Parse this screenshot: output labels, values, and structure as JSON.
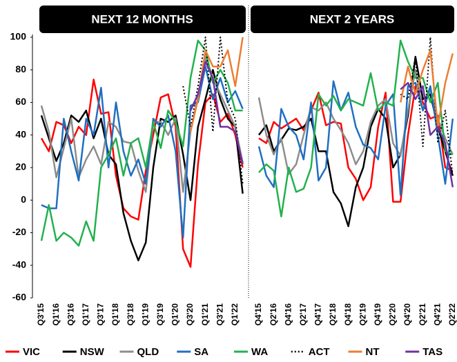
{
  "chart_data": [
    {
      "type": "line",
      "title": "NEXT 12 MONTHS",
      "categories": [
        "Q3'15",
        null,
        "Q1'16",
        null,
        "Q3'16",
        null,
        "Q1'17",
        null,
        "Q3'17",
        null,
        "Q1'18",
        null,
        "Q3'18",
        null,
        "Q1'19",
        null,
        "Q3'19",
        null,
        "Q1'20",
        null,
        "Q3'20",
        null,
        "Q1'21",
        null,
        "Q3'21",
        null,
        "Q1'22",
        null
      ],
      "ylim": [
        -60,
        100
      ],
      "yticks": [
        -60,
        -40,
        -20,
        0,
        20,
        40,
        60,
        80,
        100
      ],
      "legend": "bottom",
      "series": [
        {
          "name": "VIC",
          "color": "#ff0000",
          "values": [
            38,
            30,
            48,
            46,
            35,
            45,
            40,
            74,
            53,
            54,
            15,
            -5,
            -10,
            -12,
            18,
            40,
            63,
            65,
            45,
            -30,
            -41,
            22,
            60,
            65,
            48,
            53,
            40,
            20
          ]
        },
        {
          "name": "NSW",
          "color": "#000000",
          "values": [
            52,
            38,
            24,
            35,
            52,
            48,
            55,
            38,
            50,
            28,
            22,
            -8,
            -25,
            -37,
            -26,
            20,
            50,
            48,
            52,
            28,
            0,
            45,
            62,
            80,
            62,
            50,
            45,
            4
          ]
        },
        {
          "name": "QLD",
          "color": "#8c8c8c",
          "values": [
            58,
            42,
            14,
            32,
            50,
            14,
            25,
            33,
            22,
            48,
            45,
            36,
            35,
            18,
            5,
            48,
            48,
            40,
            50,
            5,
            42,
            63,
            88,
            75,
            65,
            55,
            45,
            23
          ]
        },
        {
          "name": "SA",
          "color": "#1f6fc0",
          "values": [
            -3,
            -5,
            -5,
            50,
            30,
            12,
            50,
            40,
            69,
            20,
            60,
            30,
            15,
            25,
            10,
            50,
            45,
            52,
            30,
            -23,
            58,
            60,
            82,
            62,
            75,
            60,
            67,
            56
          ]
        },
        {
          "name": "WA",
          "color": "#22b14c",
          "values": [
            -25,
            -3,
            -25,
            -20,
            -23,
            -28,
            -13,
            -25,
            20,
            28,
            38,
            15,
            35,
            38,
            20,
            48,
            32,
            55,
            48,
            33,
            75,
            98,
            92,
            72,
            80,
            72,
            55,
            55
          ]
        },
        {
          "name": "ACT",
          "color": "#000000",
          "style": "dotted",
          "values": [
            null,
            null,
            null,
            null,
            null,
            null,
            null,
            null,
            null,
            null,
            null,
            null,
            null,
            null,
            null,
            null,
            null,
            null,
            null,
            70,
            45,
            70,
            100,
            42,
            100,
            60,
            50,
            10
          ]
        },
        {
          "name": "NT",
          "color": "#ed7d31",
          "values": [
            null,
            null,
            null,
            null,
            null,
            null,
            null,
            null,
            null,
            null,
            null,
            null,
            null,
            null,
            null,
            null,
            null,
            null,
            null,
            null,
            42,
            62,
            92,
            82,
            82,
            92,
            70,
            100
          ]
        },
        {
          "name": "TAS",
          "color": "#7030a0",
          "values": [
            null,
            null,
            null,
            null,
            null,
            null,
            null,
            null,
            null,
            null,
            null,
            null,
            null,
            null,
            null,
            null,
            null,
            null,
            null,
            null,
            55,
            65,
            85,
            75,
            45,
            45,
            42,
            22
          ]
        }
      ]
    },
    {
      "type": "line",
      "title": "NEXT 2 YEARS",
      "categories": [
        "Q4'15",
        null,
        "Q2'16",
        null,
        "Q4'16",
        null,
        "Q2'17",
        null,
        "Q4'17",
        null,
        "Q2'18",
        null,
        "Q4'18",
        null,
        "Q2'19",
        null,
        "Q4'19",
        null,
        "Q2'20",
        null,
        "Q4'20",
        null,
        "Q2'21",
        null,
        "Q4'21",
        null,
        "Q2'22"
      ],
      "ylim": [
        -60,
        100
      ],
      "series": [
        {
          "color": "#ff0000",
          "values": [
            38,
            35,
            48,
            44,
            47,
            50,
            43,
            55,
            66,
            46,
            48,
            47,
            20,
            13,
            0,
            8,
            45,
            66,
            -1,
            -1,
            40,
            70,
            60,
            50,
            52,
            20,
            18
          ]
        },
        {
          "color": "#000000",
          "values": [
            40,
            46,
            30,
            37,
            44,
            43,
            45,
            50,
            30,
            30,
            5,
            -2,
            -16,
            8,
            20,
            45,
            56,
            50,
            20,
            28,
            52,
            88,
            62,
            65,
            45,
            30,
            15
          ]
        },
        {
          "color": "#8c8c8c",
          "values": [
            63,
            40,
            28,
            38,
            16,
            22,
            40,
            57,
            55,
            60,
            50,
            43,
            35,
            22,
            30,
            48,
            58,
            62,
            35,
            27,
            55,
            80,
            55,
            68,
            50,
            38,
            28
          ]
        },
        {
          "color": "#1f6fc0",
          "values": [
            33,
            15,
            8,
            56,
            45,
            40,
            25,
            60,
            12,
            20,
            73,
            55,
            66,
            45,
            34,
            32,
            25,
            58,
            65,
            3,
            70,
            72,
            55,
            70,
            40,
            10,
            50
          ]
        },
        {
          "color": "#22b14c",
          "values": [
            17,
            22,
            18,
            -10,
            20,
            5,
            7,
            20,
            65,
            58,
            64,
            55,
            62,
            60,
            58,
            78,
            55,
            60,
            58,
            98,
            85,
            75,
            75,
            60,
            72,
            30,
            28
          ]
        },
        {
          "color": "#000000",
          "style": "dotted",
          "values": [
            null,
            null,
            null,
            null,
            null,
            null,
            null,
            null,
            null,
            null,
            null,
            null,
            null,
            null,
            null,
            null,
            null,
            null,
            null,
            65,
            62,
            88,
            33,
            100,
            35,
            55,
            15
          ]
        },
        {
          "color": "#ed7d31",
          "values": [
            null,
            null,
            null,
            null,
            null,
            null,
            null,
            null,
            null,
            null,
            null,
            null,
            null,
            null,
            null,
            null,
            null,
            null,
            null,
            60,
            82,
            65,
            80,
            92,
            45,
            72,
            90
          ]
        },
        {
          "color": "#7030a0",
          "values": [
            null,
            null,
            null,
            null,
            null,
            null,
            null,
            null,
            null,
            null,
            null,
            null,
            null,
            null,
            null,
            null,
            null,
            null,
            null,
            68,
            72,
            62,
            70,
            40,
            45,
            35,
            8
          ]
        }
      ]
    }
  ]
}
